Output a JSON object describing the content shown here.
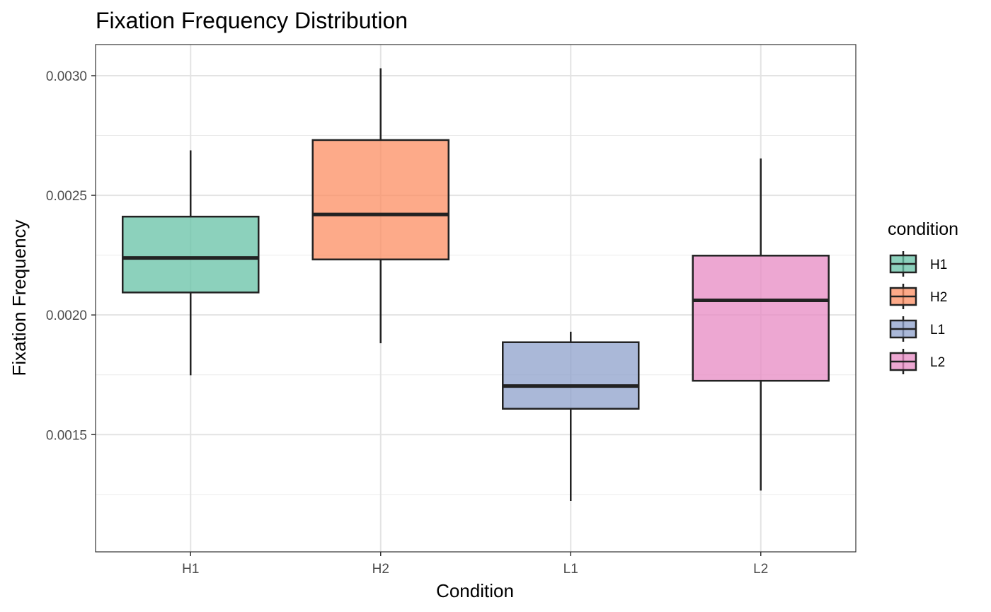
{
  "chart_data": {
    "type": "boxplot",
    "title": "Fixation Frequency Distribution",
    "xlabel": "Condition",
    "ylabel": "Fixation Frequency",
    "ylim": [
      0.00101,
      0.00313
    ],
    "yticks": [
      0.0015,
      0.002,
      0.0025,
      0.003
    ],
    "ytick_labels": [
      "0.0015",
      "0.0020",
      "0.0025",
      "0.0030"
    ],
    "categories": [
      "H1",
      "H2",
      "L1",
      "L2"
    ],
    "boxes": [
      {
        "category": "H1",
        "whisker_low": 0.001748,
        "q1": 0.002094,
        "median": 0.002238,
        "q3": 0.002411,
        "whisker_high": 0.002688,
        "color": "#66c2a5"
      },
      {
        "category": "H2",
        "whisker_low": 0.001882,
        "q1": 0.002232,
        "median": 0.00242,
        "q3": 0.002731,
        "whisker_high": 0.003031,
        "color": "#fc8d62"
      },
      {
        "category": "L1",
        "whisker_low": 0.001223,
        "q1": 0.001608,
        "median": 0.001703,
        "q3": 0.001886,
        "whisker_high": 0.00193,
        "color": "#8da0cb"
      },
      {
        "category": "L2",
        "whisker_low": 0.001266,
        "q1": 0.001725,
        "median": 0.002061,
        "q3": 0.002248,
        "whisker_high": 0.002654,
        "color": "#e78ac3"
      }
    ],
    "grid": true,
    "legend": {
      "title": "condition",
      "position": "right",
      "entries": [
        "H1",
        "H2",
        "L1",
        "L2"
      ]
    }
  }
}
